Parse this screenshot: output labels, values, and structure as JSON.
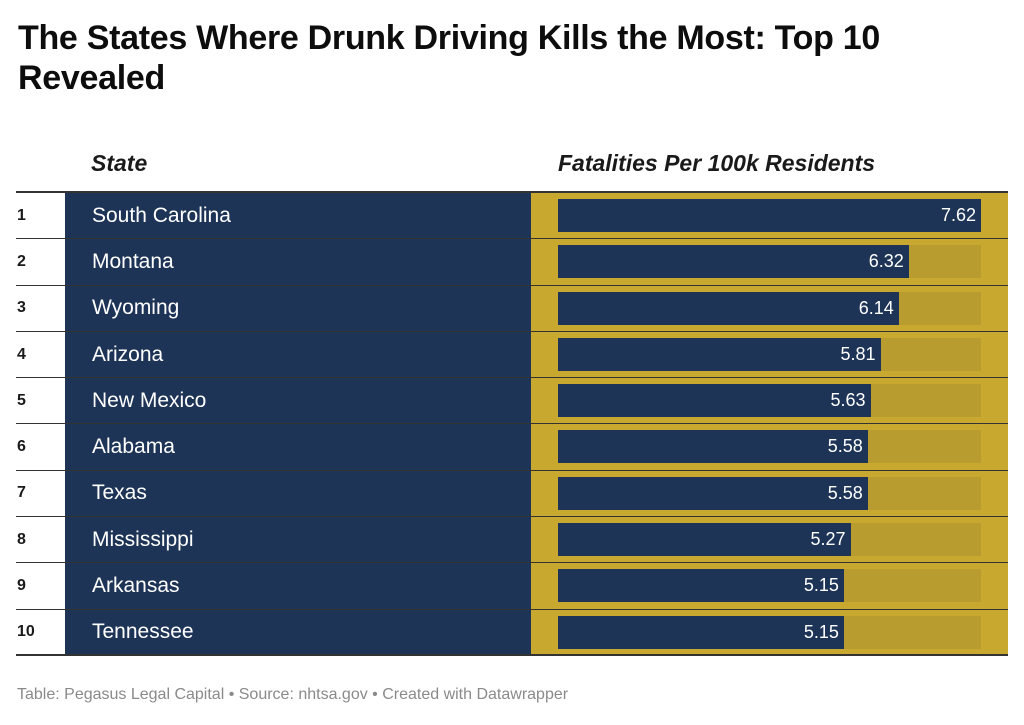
{
  "title": "The States Where Drunk Driving Kills the Most: Top 10 Revealed",
  "columns": {
    "state": "State",
    "value": "Fatalities Per 100k Residents"
  },
  "footer": "Table: Pegasus Legal Capital • Source: nhtsa.gov • Created with Datawrapper",
  "colors": {
    "navy": "#1e3457",
    "gold": "#c8a82e",
    "track": "#b89c30"
  },
  "chart_data": {
    "type": "table",
    "title": "The States Where Drunk Driving Kills the Most: Top 10 Revealed",
    "columns": [
      "",
      "State",
      "Fatalities Per 100k Residents"
    ],
    "rows": [
      {
        "rank": "1",
        "state": "South Carolina",
        "value": 7.62,
        "label": "7.62"
      },
      {
        "rank": "2",
        "state": "Montana",
        "value": 6.32,
        "label": "6.32"
      },
      {
        "rank": "3",
        "state": "Wyoming",
        "value": 6.14,
        "label": "6.14"
      },
      {
        "rank": "4",
        "state": "Arizona",
        "value": 5.81,
        "label": "5.81"
      },
      {
        "rank": "5",
        "state": "New Mexico",
        "value": 5.63,
        "label": "5.63"
      },
      {
        "rank": "6",
        "state": "Alabama",
        "value": 5.58,
        "label": "5.58"
      },
      {
        "rank": "7",
        "state": "Texas",
        "value": 5.58,
        "label": "5.58"
      },
      {
        "rank": "8",
        "state": "Mississippi",
        "value": 5.27,
        "label": "5.27"
      },
      {
        "rank": "9",
        "state": "Arkansas",
        "value": 5.15,
        "label": "5.15"
      },
      {
        "rank": "10",
        "state": "Tennessee",
        "value": 5.15,
        "label": "5.15"
      }
    ],
    "value_max": 7.62
  }
}
